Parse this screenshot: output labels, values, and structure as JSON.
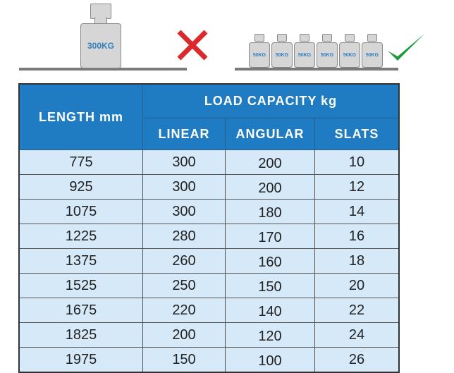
{
  "illustration": {
    "heavy_weight_label": "300KG",
    "small_weight_labels": [
      "50KG",
      "50KG",
      "50KG",
      "50KG",
      "50KG",
      "50KG"
    ],
    "wrong_icon": "red-x-icon",
    "right_icon": "green-check-icon",
    "colors": {
      "cross": "#d92b2b",
      "check": "#1a9a3a",
      "header": "#1f7bc2",
      "cell": "#d6e9f9"
    }
  },
  "table": {
    "length_header": "LENGTH mm",
    "capacity_header": "LOAD CAPACITY kg",
    "sub_headers": [
      "LINEAR",
      "ANGULAR",
      "SLATS"
    ],
    "rows": [
      [
        "775",
        "300",
        "200",
        "10"
      ],
      [
        "925",
        "300",
        "200",
        "12"
      ],
      [
        "1075",
        "300",
        "180",
        "14"
      ],
      [
        "1225",
        "280",
        "170",
        "16"
      ],
      [
        "1375",
        "260",
        "160",
        "18"
      ],
      [
        "1525",
        "250",
        "150",
        "20"
      ],
      [
        "1675",
        "220",
        "140",
        "22"
      ],
      [
        "1825",
        "200",
        "120",
        "24"
      ],
      [
        "1975",
        "150",
        "100",
        "26"
      ]
    ]
  }
}
